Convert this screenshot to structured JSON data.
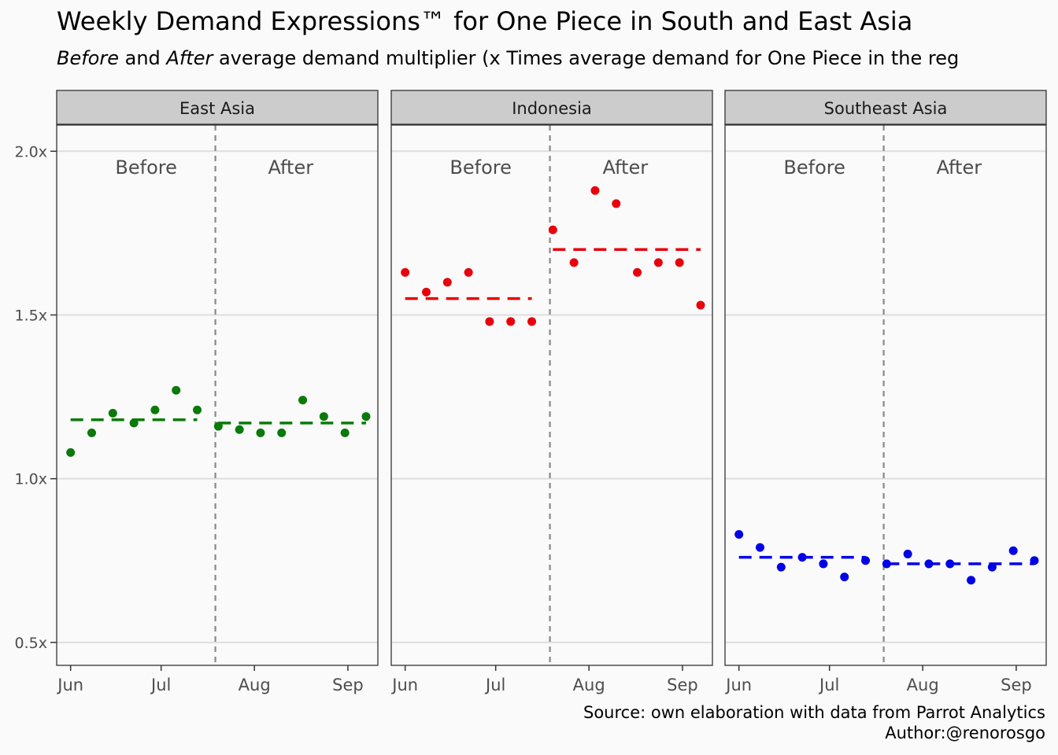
{
  "title": "Weekly Demand Expressions™ for One Piece in South and East Asia",
  "subtitle": {
    "before_word": "Before",
    "and_word": " and ",
    "after_word": "After",
    "rest": " average demand multiplier (x Times average demand for One Piece in the reg"
  },
  "caption": {
    "source": "Source: own elaboration with data from Parrot Analytics",
    "author": "Author:@renorosgo"
  },
  "chart_data": {
    "type": "scatter",
    "y_ticks": [
      "0.5x",
      "1.0x",
      "1.5x",
      "2.0x"
    ],
    "y_tick_values": [
      0.5,
      1.0,
      1.5,
      2.0
    ],
    "ylim": [
      0.43,
      2.08
    ],
    "x_ticks": [
      "Jun",
      "Jul",
      "Aug",
      "Sep"
    ],
    "x_tick_weeks": [
      0,
      4.29,
      8.71,
      13.14
    ],
    "xlim_weeks": [
      -0.66,
      14.56
    ],
    "cutoff_week": 6.86,
    "section_labels": [
      "Before",
      "After"
    ],
    "panels": [
      {
        "name": "East Asia",
        "color": "#0a7a0a",
        "points": [
          1.08,
          1.14,
          1.2,
          1.17,
          1.21,
          1.27,
          1.21,
          1.16,
          1.15,
          1.14,
          1.14,
          1.24,
          1.19,
          1.14,
          1.19
        ],
        "before_mean": 1.18,
        "after_mean": 1.17
      },
      {
        "name": "Indonesia",
        "color": "#e8000b",
        "points": [
          1.63,
          1.57,
          1.6,
          1.63,
          1.48,
          1.48,
          1.48,
          1.76,
          1.66,
          1.88,
          1.84,
          1.63,
          1.66,
          1.66,
          1.53
        ],
        "before_mean": 1.55,
        "after_mean": 1.7
      },
      {
        "name": "Southeast Asia",
        "color": "#0000e6",
        "points": [
          0.83,
          0.79,
          0.73,
          0.76,
          0.74,
          0.7,
          0.75,
          0.74,
          0.77,
          0.74,
          0.74,
          0.69,
          0.73,
          0.78,
          0.75
        ],
        "before_mean": 0.76,
        "after_mean": 0.74
      }
    ]
  }
}
